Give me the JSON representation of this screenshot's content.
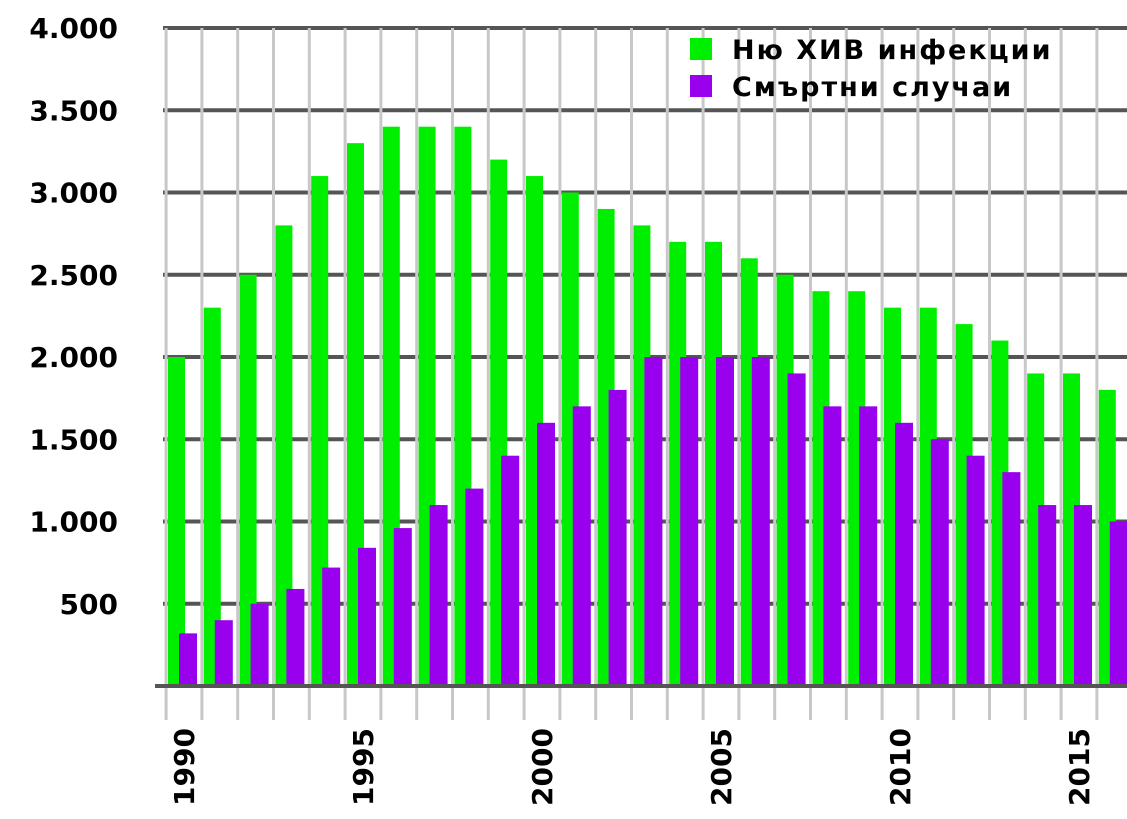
{
  "chart_data": {
    "type": "bar",
    "title": "",
    "xlabel": "",
    "ylabel": "",
    "ylim": [
      0,
      4000
    ],
    "y_ticks": [
      {
        "value": 500,
        "label": "500"
      },
      {
        "value": 1000,
        "label": "1.000"
      },
      {
        "value": 1500,
        "label": "1.500"
      },
      {
        "value": 2000,
        "label": "2.000"
      },
      {
        "value": 2500,
        "label": "2.500"
      },
      {
        "value": 3000,
        "label": "3.000"
      },
      {
        "value": 3500,
        "label": "3.500"
      },
      {
        "value": 4000,
        "label": "4.000"
      }
    ],
    "x_tick_labels": [
      {
        "year": 1990,
        "label": "1990"
      },
      {
        "year": 1995,
        "label": "1995"
      },
      {
        "year": 2000,
        "label": "2000"
      },
      {
        "year": 2005,
        "label": "2005"
      },
      {
        "year": 2010,
        "label": "2010"
      },
      {
        "year": 2015,
        "label": "2015"
      }
    ],
    "grid": true,
    "legend_position": "top-right",
    "x": [
      1990,
      1991,
      1992,
      1993,
      1994,
      1995,
      1996,
      1997,
      1998,
      1999,
      2000,
      2001,
      2002,
      2003,
      2004,
      2005,
      2006,
      2007,
      2008,
      2009,
      2010,
      2011,
      2012,
      2013,
      2014,
      2015,
      2016
    ],
    "series": [
      {
        "name": "Ню ХИВ инфекции",
        "color": "#00ee00",
        "values": [
          2000,
          2300,
          2500,
          2800,
          3100,
          3300,
          3400,
          3400,
          3400,
          3200,
          3100,
          3000,
          2900,
          2800,
          2700,
          2700,
          2600,
          2500,
          2400,
          2400,
          2300,
          2300,
          2200,
          2100,
          1900,
          1900,
          1800
        ]
      },
      {
        "name": "Смъртни случаи",
        "color": "#9900ee",
        "values": [
          320,
          400,
          500,
          590,
          720,
          840,
          960,
          1100,
          1200,
          1400,
          1600,
          1700,
          1800,
          2000,
          2000,
          2000,
          2000,
          1900,
          1700,
          1700,
          1600,
          1500,
          1400,
          1300,
          1100,
          1100,
          1000
        ]
      }
    ]
  }
}
